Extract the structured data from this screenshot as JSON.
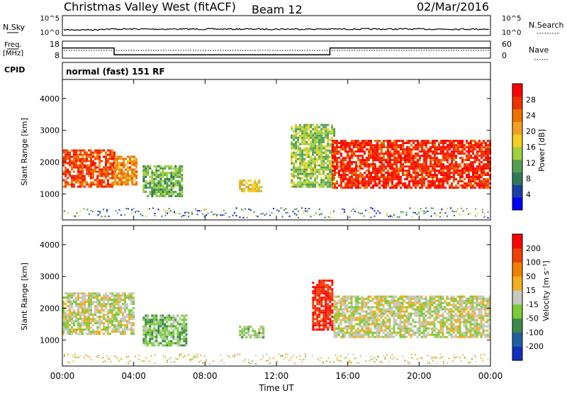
{
  "header": {
    "site": "Christmas Valley West (fitACF)",
    "beam": "Beam 12",
    "date": "02/Mar/2016"
  },
  "nsky": {
    "label": "N.Sky",
    "ticks": [
      "10^5",
      "10^0"
    ],
    "right_ticks": [
      "10^5",
      "10^0"
    ],
    "right_label": "N.Search"
  },
  "freq": {
    "label_line1": "Freq.",
    "label_line2": "[MHz]",
    "ticks": [
      "18",
      "8"
    ],
    "right_ticks": [
      "60",
      "0"
    ],
    "right_label": "Nave"
  },
  "cpid": {
    "label": "CPID",
    "text": "normal (fast) 151 RF"
  },
  "power_panel": {
    "ylabel": "Slant Range [km]",
    "yticks": [
      "4000",
      "3000",
      "2000",
      "1000"
    ],
    "colorbar_label": "Power [dB]",
    "colorbar_ticks": [
      "28",
      "24",
      "20",
      "16",
      "12",
      "8",
      "4"
    ],
    "colors": [
      "#0000ff",
      "#1a3ea8",
      "#2e7a5a",
      "#55a050",
      "#9fd040",
      "#f0d020",
      "#f0a020",
      "#f07000",
      "#f03000",
      "#ff0000"
    ]
  },
  "velocity_panel": {
    "ylabel": "Slant Range [km]",
    "yticks": [
      "4000",
      "3000",
      "2000",
      "1000"
    ],
    "colorbar_label": "Velocity [m s⁻¹]",
    "colorbar_ticks": [
      "200",
      "100",
      "50",
      "15",
      "-15",
      "-50",
      "-100",
      "-200"
    ],
    "colors": [
      "#1030c0",
      "#2060a0",
      "#3a8a4a",
      "#7acc3a",
      "#c8c8c0",
      "#f0b020",
      "#f08000",
      "#f04000",
      "#ff0000"
    ]
  },
  "time_axis": {
    "xlabel": "Time UT",
    "ticks": [
      "00:00",
      "04:00",
      "08:00",
      "12:00",
      "16:00",
      "20:00",
      "00:00"
    ]
  },
  "chart_data": {
    "type": "heatmap",
    "title": "Christmas Valley West (fitACF)",
    "subtitle": "Beam 12",
    "date": "02/Mar/2016",
    "x_range_hours": [
      0,
      24
    ],
    "xlabel": "Time UT",
    "ylabel": "Slant Range [km]",
    "y_range_km": [
      180,
      4600
    ],
    "power_range_db": [
      0,
      32
    ],
    "velocity_range_ms": [
      -250,
      250
    ],
    "frequency_steps": [
      {
        "from_hour": 0.0,
        "to_hour": 2.9,
        "freq_mhz": 14.0
      },
      {
        "from_hour": 2.9,
        "to_hour": 15.0,
        "freq_mhz": 10.0
      },
      {
        "from_hour": 15.0,
        "to_hour": 24.0,
        "freq_mhz": 14.0
      }
    ],
    "power_regions": [
      {
        "t0": 0.0,
        "t1": 2.9,
        "r0": 1200,
        "r1": 2400,
        "power_db": 26
      },
      {
        "t0": 2.9,
        "t1": 4.1,
        "r0": 1300,
        "r1": 2200,
        "power_db": 22
      },
      {
        "t0": 4.5,
        "t1": 6.7,
        "r0": 900,
        "r1": 1900,
        "power_db": 12
      },
      {
        "t0": 9.9,
        "t1": 11.2,
        "r0": 1100,
        "r1": 1450,
        "power_db": 18
      },
      {
        "t0": 12.8,
        "t1": 15.2,
        "r0": 1200,
        "r1": 3200,
        "power_db": 14
      },
      {
        "t0": 15.1,
        "t1": 24.0,
        "r0": 1200,
        "r1": 2700,
        "power_db": 28
      }
    ],
    "velocity_regions": [
      {
        "t0": 0.0,
        "t1": 4.0,
        "r0": 1200,
        "r1": 2500,
        "velocity_ms": 0
      },
      {
        "t0": 4.5,
        "t1": 7.0,
        "r0": 800,
        "r1": 1800,
        "velocity_ms": -60
      },
      {
        "t0": 9.9,
        "t1": 11.3,
        "r0": 1100,
        "r1": 1450,
        "velocity_ms": -30
      },
      {
        "t0": 14.0,
        "t1": 15.1,
        "r0": 1300,
        "r1": 2900,
        "velocity_ms": 200
      },
      {
        "t0": 15.2,
        "t1": 24.0,
        "r0": 1100,
        "r1": 2400,
        "velocity_ms": 0
      }
    ]
  }
}
